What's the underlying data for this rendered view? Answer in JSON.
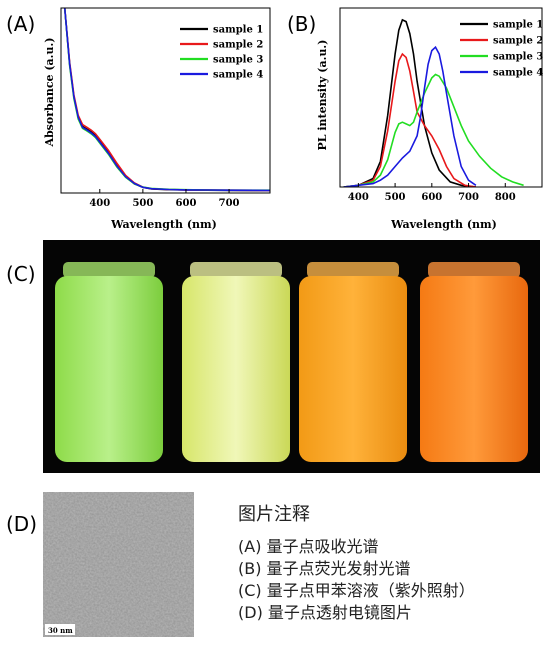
{
  "panels": {
    "a": "(A)",
    "b": "(B)",
    "c": "(C)",
    "d": "(D)"
  },
  "colors": {
    "sample 1": "#000000",
    "sample 2": "#e8191b",
    "sample 3": "#22dd22",
    "sample 4": "#1a1adf"
  },
  "chart_data": [
    {
      "type": "line",
      "xlabel": "Wavelength (nm)",
      "ylabel": "Absorbance (a.u.)",
      "xlim": [
        310,
        795
      ],
      "ylim": [
        0,
        1
      ],
      "xticks": [
        400,
        500,
        600,
        700
      ],
      "legend": "top-right",
      "series": [
        {
          "name": "sample 1",
          "x": [
            318,
            330,
            340,
            350,
            360,
            370,
            380,
            390,
            400,
            420,
            440,
            460,
            480,
            500,
            520,
            560,
            600,
            650,
            700,
            795
          ],
          "y": [
            1.02,
            0.7,
            0.52,
            0.41,
            0.36,
            0.345,
            0.33,
            0.31,
            0.28,
            0.22,
            0.15,
            0.09,
            0.05,
            0.03,
            0.022,
            0.018,
            0.016,
            0.015,
            0.014,
            0.013
          ]
        },
        {
          "name": "sample 2",
          "x": [
            318,
            330,
            340,
            350,
            360,
            370,
            380,
            390,
            400,
            420,
            440,
            460,
            480,
            500,
            520,
            560,
            600,
            650,
            700,
            795
          ],
          "y": [
            1.02,
            0.71,
            0.53,
            0.42,
            0.37,
            0.355,
            0.34,
            0.32,
            0.29,
            0.23,
            0.16,
            0.095,
            0.055,
            0.032,
            0.023,
            0.019,
            0.017,
            0.016,
            0.015,
            0.014
          ]
        },
        {
          "name": "sample 3",
          "x": [
            318,
            330,
            340,
            350,
            360,
            370,
            380,
            390,
            400,
            420,
            440,
            460,
            480,
            500,
            520,
            560,
            600,
            650,
            700,
            795
          ],
          "y": [
            1.02,
            0.69,
            0.51,
            0.4,
            0.35,
            0.335,
            0.32,
            0.3,
            0.27,
            0.21,
            0.14,
            0.085,
            0.05,
            0.032,
            0.025,
            0.02,
            0.018,
            0.016,
            0.015,
            0.015
          ]
        },
        {
          "name": "sample 4",
          "x": [
            318,
            330,
            340,
            350,
            360,
            370,
            380,
            390,
            400,
            420,
            440,
            460,
            480,
            500,
            520,
            560,
            600,
            650,
            700,
            795
          ],
          "y": [
            1.02,
            0.7,
            0.52,
            0.41,
            0.355,
            0.34,
            0.325,
            0.305,
            0.275,
            0.215,
            0.145,
            0.088,
            0.052,
            0.031,
            0.023,
            0.019,
            0.017,
            0.016,
            0.015,
            0.014
          ]
        }
      ]
    },
    {
      "type": "line",
      "xlabel": "Wavelength (nm)",
      "ylabel": "PL intensity (a.u.)",
      "xlim": [
        350,
        900
      ],
      "ylim": [
        0,
        1.05
      ],
      "xticks": [
        400,
        500,
        600,
        700,
        800
      ],
      "legend": "top-right",
      "series": [
        {
          "name": "sample 1",
          "x": [
            360,
            400,
            440,
            460,
            480,
            500,
            510,
            520,
            530,
            540,
            550,
            560,
            580,
            600,
            620,
            650,
            680,
            720
          ],
          "y": [
            0,
            0.01,
            0.05,
            0.15,
            0.42,
            0.78,
            0.92,
            0.98,
            0.97,
            0.9,
            0.78,
            0.62,
            0.36,
            0.2,
            0.1,
            0.03,
            0.01,
            0
          ]
        },
        {
          "name": "sample 2",
          "x": [
            360,
            400,
            440,
            460,
            480,
            500,
            510,
            520,
            530,
            540,
            550,
            560,
            580,
            600,
            620,
            640,
            660,
            690,
            720
          ],
          "y": [
            0,
            0.01,
            0.04,
            0.12,
            0.33,
            0.62,
            0.74,
            0.78,
            0.76,
            0.68,
            0.56,
            0.44,
            0.36,
            0.3,
            0.22,
            0.12,
            0.05,
            0.01,
            0
          ]
        },
        {
          "name": "sample 3",
          "x": [
            360,
            400,
            440,
            460,
            480,
            500,
            510,
            520,
            530,
            540,
            550,
            560,
            580,
            600,
            610,
            620,
            640,
            660,
            680,
            700,
            730,
            760,
            790,
            820,
            850
          ],
          "y": [
            0,
            0.01,
            0.03,
            0.07,
            0.16,
            0.32,
            0.37,
            0.38,
            0.37,
            0.36,
            0.38,
            0.44,
            0.55,
            0.64,
            0.66,
            0.65,
            0.58,
            0.47,
            0.36,
            0.27,
            0.18,
            0.11,
            0.06,
            0.03,
            0.01
          ]
        },
        {
          "name": "sample 4",
          "x": [
            360,
            400,
            440,
            460,
            480,
            500,
            520,
            540,
            560,
            570,
            580,
            590,
            600,
            610,
            620,
            630,
            640,
            660,
            680,
            700,
            720
          ],
          "y": [
            0,
            0.01,
            0.02,
            0.04,
            0.07,
            0.12,
            0.17,
            0.21,
            0.3,
            0.42,
            0.58,
            0.72,
            0.8,
            0.82,
            0.78,
            0.68,
            0.55,
            0.3,
            0.12,
            0.04,
            0.01
          ]
        }
      ]
    }
  ],
  "tem": {
    "scale_label": "30 nm"
  },
  "captions": {
    "title": "图片注释",
    "lines": [
      "(A) 量子点吸收光谱",
      "(B) 量子点荧光发射光谱",
      "(C) 量子点甲苯溶液（紫外照射）",
      "(D) 量子点透射电镜图片"
    ]
  }
}
